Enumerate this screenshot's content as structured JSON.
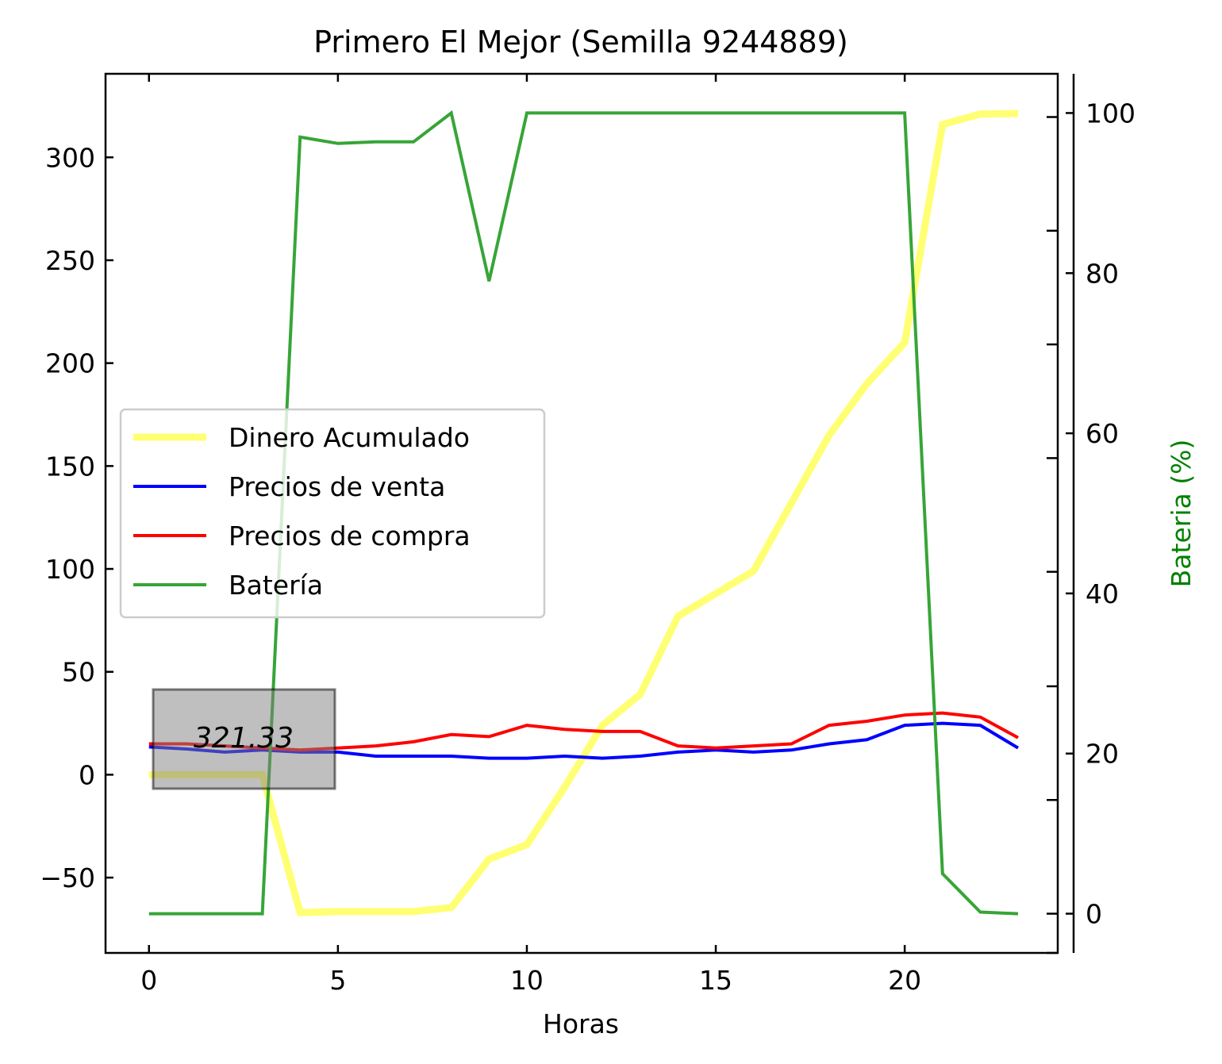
{
  "chart_data": {
    "type": "line",
    "title": "Primero El Mejor (Semilla 9244889)",
    "xlabel": "Horas",
    "ylabel": "",
    "y2label": "Bateria (%)",
    "xlim": [
      -1.15,
      24.05
    ],
    "ylim": [
      -86.6,
      340.6
    ],
    "y2lim": [
      -4.9,
      104.9
    ],
    "x_ticks": [
      "0",
      "5",
      "10",
      "15",
      "20"
    ],
    "x_tick_values": [
      0,
      5,
      10,
      15,
      20
    ],
    "y_ticks": [
      "−50",
      "0",
      "50",
      "100",
      "150",
      "200",
      "250",
      "300"
    ],
    "y_tick_values": [
      -50,
      0,
      50,
      100,
      150,
      200,
      250,
      300
    ],
    "y2_ticks": [
      "0",
      "20",
      "40",
      "60",
      "80",
      "100"
    ],
    "y2_tick_values": [
      0,
      20,
      40,
      60,
      80,
      100
    ],
    "y2_minor_tick_values": [
      -4.9,
      0,
      14.2,
      28.4,
      42.7,
      56.9,
      71.1,
      85.3,
      99.5
    ],
    "legend_position": "center-left",
    "annotation": {
      "text": "321.33",
      "x": 3.1,
      "y": 17.5
    },
    "x": [
      0,
      1,
      2,
      3,
      4,
      5,
      6,
      7,
      8,
      9,
      10,
      11,
      12,
      13,
      14,
      15,
      16,
      17,
      18,
      19,
      20,
      21,
      22,
      23
    ],
    "series": [
      {
        "name": "Dinero Acumulado",
        "axis": "left",
        "color": "#ffff00",
        "opacity": 0.55,
        "width": 9,
        "values": [
          0,
          0,
          0,
          0,
          -67,
          -66.5,
          -66.5,
          -66.5,
          -64.6,
          -41,
          -34,
          -6,
          24,
          39,
          77,
          88,
          99,
          132,
          165,
          190,
          210,
          316,
          321,
          321.33
        ]
      },
      {
        "name": "Precios de venta",
        "axis": "left",
        "color": "#0000ff",
        "opacity": 1,
        "width": 4,
        "values": [
          13.5,
          12.5,
          11,
          12,
          11,
          11,
          9,
          9,
          9,
          8,
          8,
          9,
          8,
          9,
          11,
          12,
          11,
          12,
          15,
          17,
          24,
          25,
          24,
          13
        ]
      },
      {
        "name": "Precios de compra",
        "axis": "left",
        "color": "#ff0000",
        "opacity": 1,
        "width": 4,
        "values": [
          15,
          15,
          14,
          13,
          12,
          13,
          14,
          16,
          19.5,
          18.5,
          24,
          22,
          21,
          21,
          14,
          13,
          14,
          15,
          24,
          26,
          29,
          30,
          28,
          18
        ]
      },
      {
        "name": "Batería",
        "axis": "right",
        "color": "#2ca02c",
        "opacity": 0.95,
        "width": 4,
        "values": [
          0,
          0,
          0,
          0,
          97,
          96.2,
          96.4,
          96.4,
          100,
          79,
          100,
          100,
          100,
          100,
          100,
          100,
          100,
          100,
          100,
          100,
          100,
          5,
          0.2,
          0
        ]
      }
    ]
  }
}
